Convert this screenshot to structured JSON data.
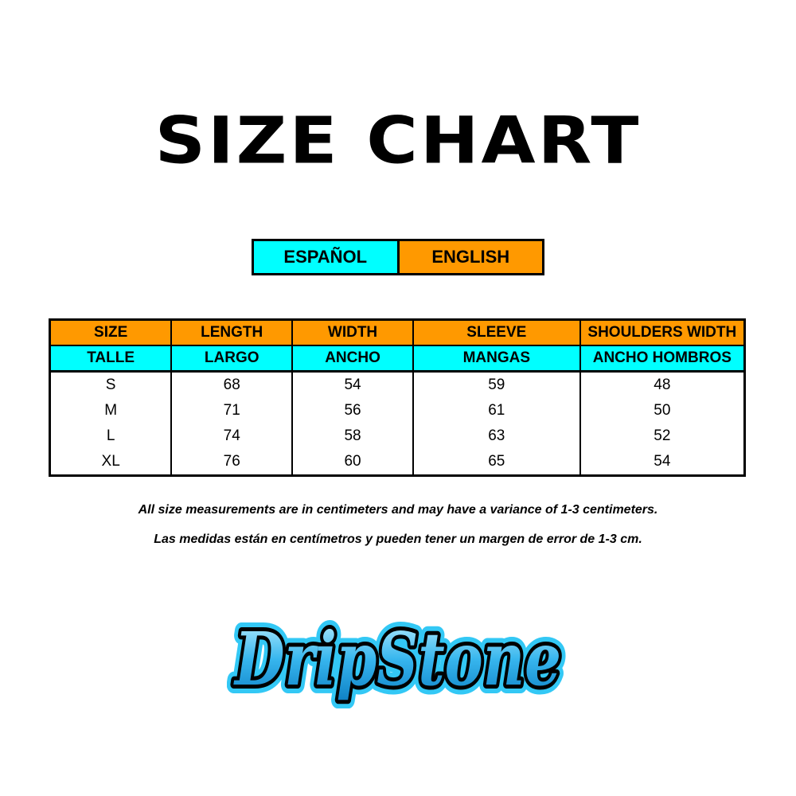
{
  "title": "SIZE CHART",
  "languages": {
    "spanish": "ESPAÑOL",
    "english": "ENGLISH"
  },
  "colors": {
    "orange": "#ff9900",
    "cyan": "#00ffff"
  },
  "table": {
    "headers_en": [
      "SIZE",
      "LENGTH",
      "WIDTH",
      "SLEEVE",
      "SHOULDERS WIDTH"
    ],
    "headers_es": [
      "TALLE",
      "LARGO",
      "ANCHO",
      "MANGAS",
      "ANCHO HOMBROS"
    ],
    "rows": [
      [
        "S",
        "68",
        "54",
        "59",
        "48"
      ],
      [
        "M",
        "71",
        "56",
        "61",
        "50"
      ],
      [
        "L",
        "74",
        "58",
        "63",
        "52"
      ],
      [
        "XL",
        "76",
        "60",
        "65",
        "54"
      ]
    ]
  },
  "notes": {
    "english": "All size measurements are in centimeters and may have a variance of 1-3 centimeters.",
    "spanish": "Las medidas están en centímetros y pueden tener un margen de error de 1-3 cm."
  },
  "logo": {
    "text": "DripStone"
  }
}
